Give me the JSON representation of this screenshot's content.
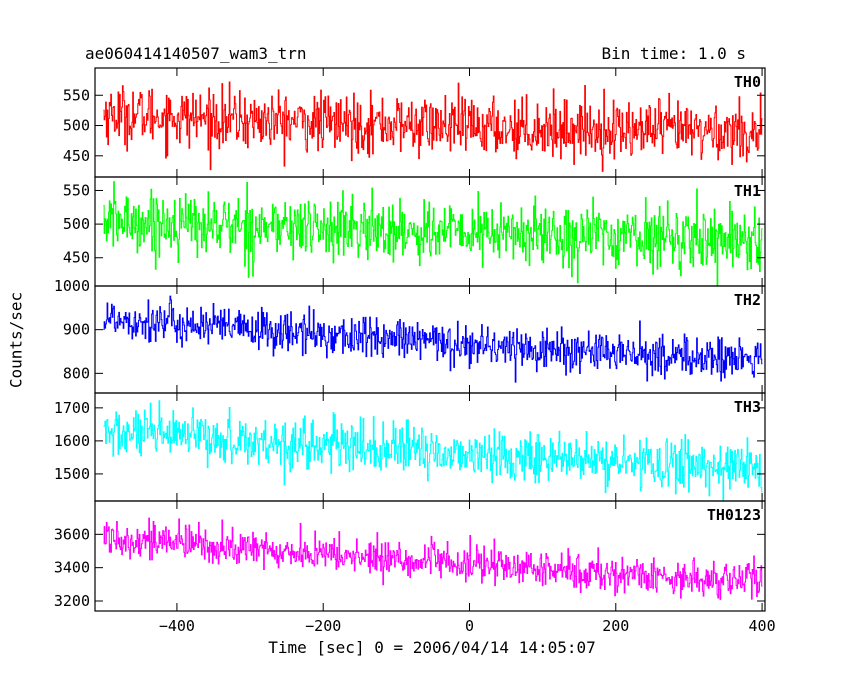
{
  "header": {
    "title": "ae060414140507_wam3_trn",
    "bin_time": "Bin time: 1.0 s"
  },
  "chart_data": {
    "type": "line",
    "ylabel": "Counts/sec",
    "xlabel": "Time [sec] 0 = 2006/04/14 14:05:07",
    "xlim": [
      -512,
      404
    ],
    "x_ticks": [
      -400,
      -200,
      0,
      200,
      400
    ],
    "x_tick_labels": [
      "−400",
      "−200",
      "0",
      "200",
      "400"
    ],
    "x_range_data": [
      -500,
      400
    ],
    "bin_seconds": 1.0,
    "panels": [
      {
        "name": "TH0",
        "color": "#ff0000",
        "ylim": [
          415,
          595
        ],
        "yticks": [
          450,
          500,
          550
        ],
        "trend": [
          [
            -500,
            520
          ],
          [
            -300,
            508
          ],
          [
            0,
            498
          ],
          [
            200,
            493
          ],
          [
            400,
            489
          ]
        ],
        "noise_sd": 24
      },
      {
        "name": "TH1",
        "color": "#00ff00",
        "ylim": [
          408,
          570
        ],
        "yticks": [
          450,
          500,
          550
        ],
        "trend": [
          [
            -500,
            505
          ],
          [
            -300,
            497
          ],
          [
            0,
            487
          ],
          [
            200,
            482
          ],
          [
            400,
            478
          ]
        ],
        "noise_sd": 23
      },
      {
        "name": "TH2",
        "color": "#0000ff",
        "ylim": [
          755,
          1000
        ],
        "yticks": [
          800,
          900,
          1000
        ],
        "trend": [
          [
            -500,
            928
          ],
          [
            -300,
            900
          ],
          [
            0,
            866
          ],
          [
            200,
            845
          ],
          [
            400,
            830
          ]
        ],
        "noise_sd": 24
      },
      {
        "name": "TH3",
        "color": "#00ffff",
        "ylim": [
          1418,
          1745
        ],
        "yticks": [
          1500,
          1600,
          1700
        ],
        "trend": [
          [
            -500,
            1625
          ],
          [
            -300,
            1600
          ],
          [
            0,
            1560
          ],
          [
            200,
            1535
          ],
          [
            400,
            1520
          ]
        ],
        "noise_sd": 38
      },
      {
        "name": "TH0123",
        "color": "#ff00ff",
        "ylim": [
          3140,
          3800
        ],
        "yticks": [
          3200,
          3400,
          3600
        ],
        "trend": [
          [
            -500,
            3590
          ],
          [
            -300,
            3510
          ],
          [
            0,
            3420
          ],
          [
            200,
            3360
          ],
          [
            400,
            3320
          ]
        ],
        "noise_sd": 55
      }
    ]
  }
}
